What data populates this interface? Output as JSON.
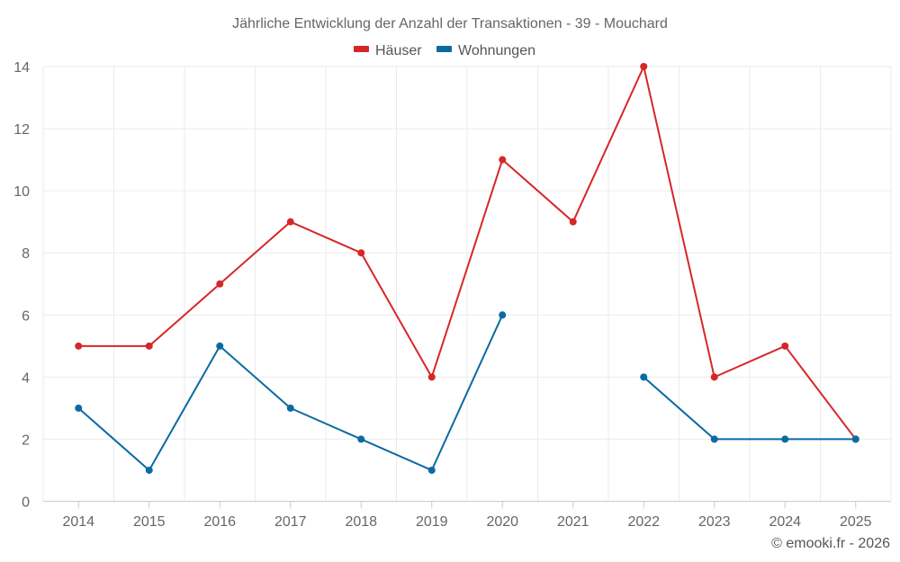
{
  "chart_data": {
    "type": "line",
    "title": "Jährliche Entwicklung der Anzahl der Transaktionen - 39 - Mouchard",
    "categories": [
      "2014",
      "2015",
      "2016",
      "2017",
      "2018",
      "2019",
      "2020",
      "2021",
      "2022",
      "2023",
      "2024",
      "2025"
    ],
    "series": [
      {
        "name": "Häuser",
        "color": "#d62728",
        "values": [
          5,
          5,
          7,
          9,
          8,
          4,
          11,
          9,
          14,
          4,
          5,
          2
        ]
      },
      {
        "name": "Wohnungen",
        "color": "#0b6aa2",
        "values": [
          3,
          1,
          5,
          3,
          2,
          1,
          6,
          null,
          4,
          2,
          2,
          2
        ]
      }
    ],
    "ylim": [
      0,
      14
    ],
    "yticks": [
      "0",
      "2",
      "4",
      "6",
      "8",
      "10",
      "12",
      "14"
    ],
    "xlabel": "",
    "ylabel": "",
    "grid": true,
    "legend": "top-center",
    "credit": "© emooki.fr - 2026"
  }
}
